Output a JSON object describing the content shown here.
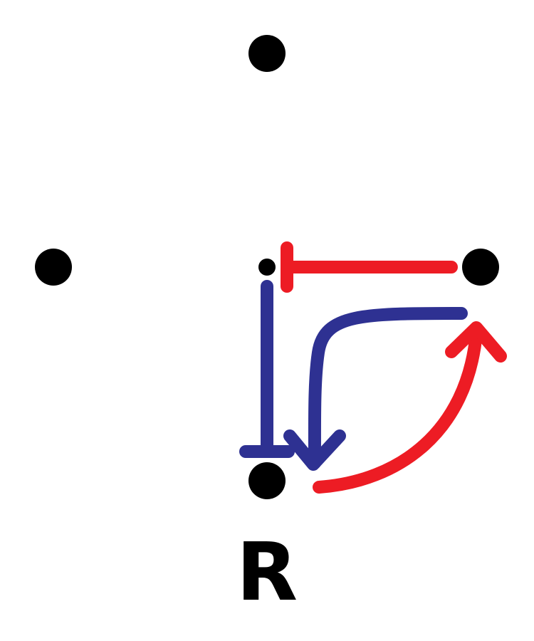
{
  "diagram": {
    "nodes": [
      {
        "name": "top"
      },
      {
        "name": "left"
      },
      {
        "name": "center-small"
      },
      {
        "name": "right"
      },
      {
        "name": "bottom-r"
      }
    ],
    "label": "R",
    "colors": {
      "red": "#ed1c24",
      "blue": "#2e3192",
      "node": "#000000"
    }
  }
}
